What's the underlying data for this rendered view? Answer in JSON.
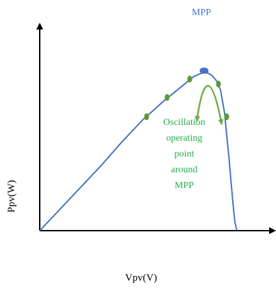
{
  "chart_data": {
    "type": "line",
    "title": "",
    "xlabel": "Vpv(V)",
    "ylabel": "Ppv(W)",
    "xlim": [
      0,
      100
    ],
    "ylim": [
      0,
      100
    ],
    "grid": false,
    "series": [
      {
        "values_note": "P-V curve of PV array",
        "x": [
          0,
          10,
          20,
          30,
          40,
          50,
          60,
          65,
          70,
          75,
          78,
          80,
          82,
          84,
          86,
          88,
          89,
          90,
          91,
          92,
          93,
          94,
          95,
          96
        ],
        "y": [
          0,
          13,
          26,
          39,
          53,
          66,
          77,
          82,
          87,
          92,
          93.7,
          94.3,
          94,
          92.5,
          89.5,
          84,
          77,
          70,
          57,
          45,
          31,
          17,
          5,
          0
        ]
      }
    ],
    "color": "#4472C4",
    "mpp_point": {
      "x": 80,
      "y": 94.3,
      "color": "#4472C4"
    },
    "operating_points": {
      "color": "#5B9A33",
      "points": [
        {
          "x": 52,
          "y": 68
        },
        {
          "x": 62,
          "y": 79.5
        },
        {
          "x": 73,
          "y": 90.5
        },
        {
          "x": 87,
          "y": 87.5
        },
        {
          "x": 91,
          "y": 68
        }
      ]
    },
    "oscillation_arrow_color": "#70AD47",
    "annotations": {
      "mpp_label": "MPP",
      "oscillation_lines": [
        "Oscillation",
        "operating",
        "point",
        "around",
        "MPP"
      ]
    }
  }
}
